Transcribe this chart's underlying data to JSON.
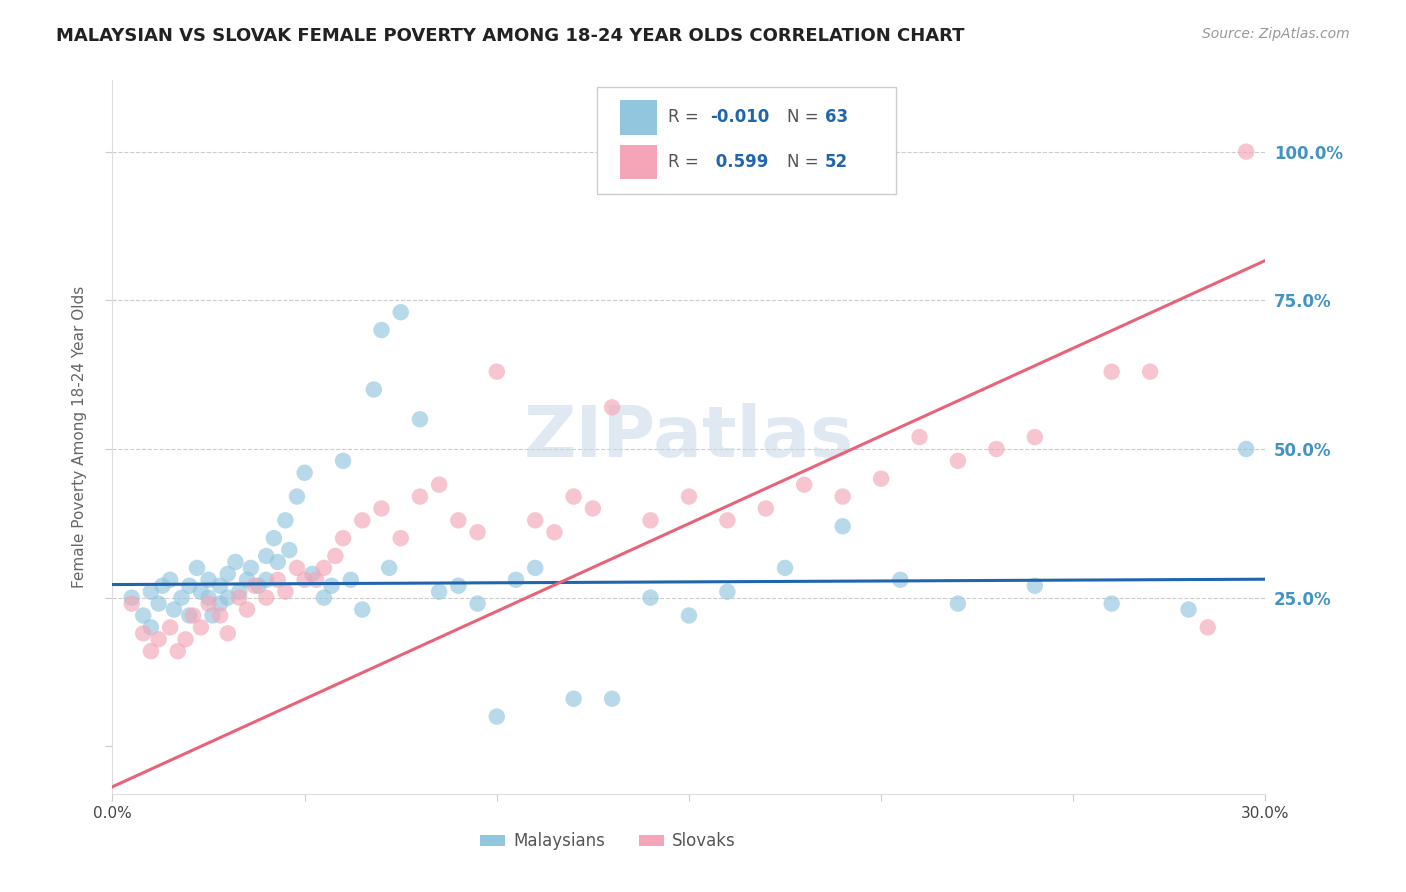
{
  "title": "MALAYSIAN VS SLOVAK FEMALE POVERTY AMONG 18-24 YEAR OLDS CORRELATION CHART",
  "source": "Source: ZipAtlas.com",
  "ylabel": "Female Poverty Among 18-24 Year Olds",
  "watermark": "ZIPatlas",
  "blue_color": "#92c5de",
  "pink_color": "#f4a6b8",
  "blue_line_color": "#2166ac",
  "pink_line_color": "#e8637a",
  "right_label_color": "#4393c3",
  "dashed_line_color": "#cccccc",
  "background_color": "#ffffff",
  "xlim": [
    0.0,
    0.3
  ],
  "ylim": [
    -0.08,
    1.12
  ],
  "blue_intercept": 0.272,
  "blue_slope": 0.03,
  "pink_intercept": -0.068,
  "pink_slope": 2.95,
  "title_fontsize": 13,
  "source_fontsize": 10,
  "malaysian_x": [
    0.005,
    0.008,
    0.01,
    0.01,
    0.012,
    0.013,
    0.015,
    0.016,
    0.018,
    0.02,
    0.02,
    0.022,
    0.023,
    0.025,
    0.025,
    0.026,
    0.028,
    0.028,
    0.03,
    0.03,
    0.032,
    0.033,
    0.035,
    0.036,
    0.038,
    0.04,
    0.04,
    0.042,
    0.043,
    0.045,
    0.046,
    0.048,
    0.05,
    0.052,
    0.055,
    0.057,
    0.06,
    0.062,
    0.065,
    0.068,
    0.07,
    0.072,
    0.075,
    0.08,
    0.085,
    0.09,
    0.095,
    0.1,
    0.105,
    0.11,
    0.12,
    0.13,
    0.14,
    0.15,
    0.16,
    0.175,
    0.19,
    0.205,
    0.22,
    0.24,
    0.26,
    0.28,
    0.295
  ],
  "malaysian_y": [
    0.25,
    0.22,
    0.26,
    0.2,
    0.24,
    0.27,
    0.28,
    0.23,
    0.25,
    0.27,
    0.22,
    0.3,
    0.26,
    0.25,
    0.28,
    0.22,
    0.27,
    0.24,
    0.29,
    0.25,
    0.31,
    0.26,
    0.28,
    0.3,
    0.27,
    0.32,
    0.28,
    0.35,
    0.31,
    0.38,
    0.33,
    0.42,
    0.46,
    0.29,
    0.25,
    0.27,
    0.48,
    0.28,
    0.23,
    0.6,
    0.7,
    0.3,
    0.73,
    0.55,
    0.26,
    0.27,
    0.24,
    0.05,
    0.28,
    0.3,
    0.08,
    0.08,
    0.25,
    0.22,
    0.26,
    0.3,
    0.37,
    0.28,
    0.24,
    0.27,
    0.24,
    0.23,
    0.5
  ],
  "slovak_x": [
    0.005,
    0.008,
    0.01,
    0.012,
    0.015,
    0.017,
    0.019,
    0.021,
    0.023,
    0.025,
    0.028,
    0.03,
    0.033,
    0.035,
    0.037,
    0.04,
    0.043,
    0.045,
    0.048,
    0.05,
    0.053,
    0.055,
    0.058,
    0.06,
    0.065,
    0.07,
    0.075,
    0.08,
    0.085,
    0.09,
    0.095,
    0.1,
    0.11,
    0.115,
    0.12,
    0.125,
    0.13,
    0.14,
    0.15,
    0.16,
    0.17,
    0.18,
    0.19,
    0.2,
    0.21,
    0.22,
    0.23,
    0.24,
    0.26,
    0.27,
    0.285,
    0.295
  ],
  "slovak_y": [
    0.24,
    0.19,
    0.16,
    0.18,
    0.2,
    0.16,
    0.18,
    0.22,
    0.2,
    0.24,
    0.22,
    0.19,
    0.25,
    0.23,
    0.27,
    0.25,
    0.28,
    0.26,
    0.3,
    0.28,
    0.28,
    0.3,
    0.32,
    0.35,
    0.38,
    0.4,
    0.35,
    0.42,
    0.44,
    0.38,
    0.36,
    0.63,
    0.38,
    0.36,
    0.42,
    0.4,
    0.57,
    0.38,
    0.42,
    0.38,
    0.4,
    0.44,
    0.42,
    0.45,
    0.52,
    0.48,
    0.5,
    0.52,
    0.63,
    0.63,
    0.2,
    1.0
  ]
}
